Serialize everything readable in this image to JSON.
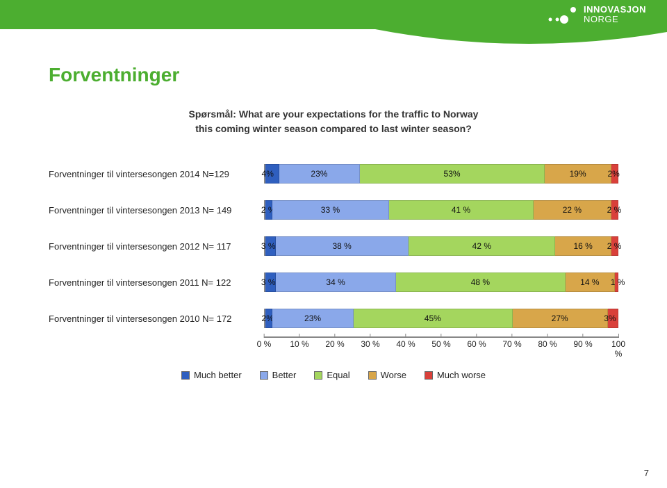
{
  "header": {
    "brand_top": "INNOVASJON",
    "brand_bottom": "NORGE",
    "band_color": "#4cae30"
  },
  "title": "Forventninger",
  "subtitle_l1": "Spørsmål: What are your expectations for the traffic to Norway",
  "subtitle_l2": "this coming winter season compared to last winter season?",
  "chart": {
    "type": "stacked-bar-100",
    "colors": {
      "much_better": "#2f5fbf",
      "better": "#8aa8ea",
      "equal": "#a4d65e",
      "worse": "#d8a64a",
      "much_worse": "#d9403a"
    },
    "rows": [
      {
        "label": "Forventninger til vintersesongen 2014 N=129",
        "segs": [
          {
            "v": 4,
            "t": "4%"
          },
          {
            "v": 23,
            "t": "23%"
          },
          {
            "v": 53,
            "t": "53%"
          },
          {
            "v": 19,
            "t": "19%"
          },
          {
            "v": 2,
            "t": "2%"
          }
        ]
      },
      {
        "label": "Forventninger til vintersesongen 2013 N= 149",
        "segs": [
          {
            "v": 2,
            "t": "2 %"
          },
          {
            "v": 33,
            "t": "33 %"
          },
          {
            "v": 41,
            "t": "41 %"
          },
          {
            "v": 22,
            "t": "22 %"
          },
          {
            "v": 2,
            "t": "2 %"
          }
        ]
      },
      {
        "label": "Forventninger til vintersesongen 2012 N= 117",
        "segs": [
          {
            "v": 3,
            "t": "3 %"
          },
          {
            "v": 38,
            "t": "38 %"
          },
          {
            "v": 42,
            "t": "42 %"
          },
          {
            "v": 16,
            "t": "16 %"
          },
          {
            "v": 2,
            "t": "2 %"
          }
        ]
      },
      {
        "label": "Forventninger til vintersesongen 2011 N= 122",
        "segs": [
          {
            "v": 3,
            "t": "3 %"
          },
          {
            "v": 34,
            "t": "34 %"
          },
          {
            "v": 48,
            "t": "48 %"
          },
          {
            "v": 14,
            "t": "14 %"
          },
          {
            "v": 1,
            "t": "1 %"
          }
        ]
      },
      {
        "label": "Forventninger til vintersesongen 2010 N= 172",
        "segs": [
          {
            "v": 2,
            "t": "2%"
          },
          {
            "v": 23,
            "t": "23%"
          },
          {
            "v": 45,
            "t": "45%"
          },
          {
            "v": 27,
            "t": "27%"
          },
          {
            "v": 3,
            "t": "3%"
          }
        ]
      }
    ],
    "axis_ticks": [
      "0 %",
      "10 %",
      "20 %",
      "30 %",
      "40 %",
      "50 %",
      "60 %",
      "70 %",
      "80 %",
      "90 %",
      "100 %"
    ],
    "legend": [
      "Much better",
      "Better",
      "Equal",
      "Worse",
      "Much worse"
    ]
  },
  "page_number": "7"
}
